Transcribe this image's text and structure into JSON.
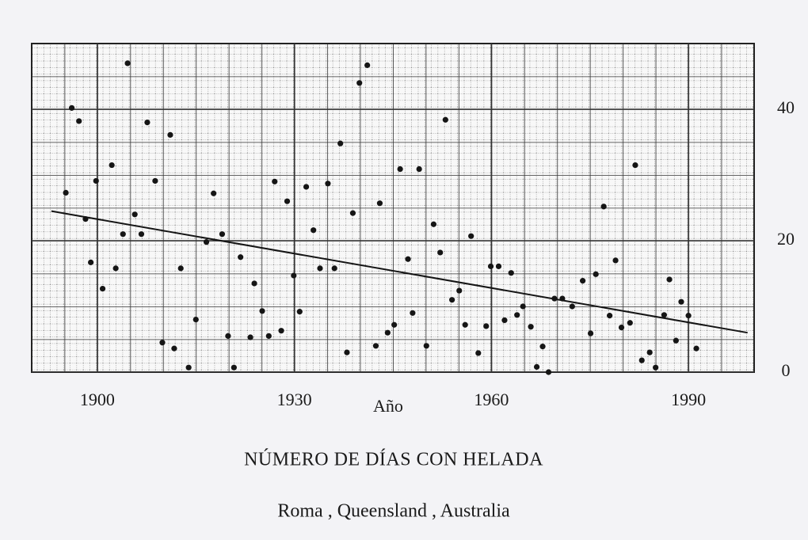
{
  "chart_data": {
    "type": "scatter",
    "title": "NÚMERO DE DÍAS CON HELADA",
    "subtitle": "Roma , Queensland , Australia",
    "x_label": "Año",
    "xlim": [
      1890,
      2000
    ],
    "ylim": [
      0,
      50
    ],
    "xticks": [
      1900,
      1930,
      1960,
      1990
    ],
    "yticks": [
      0,
      20,
      40
    ],
    "grid": true,
    "y_axis_side": "right",
    "color": "#151515",
    "x": [
      1895.2,
      1896.1,
      1897.2,
      1898.2,
      1899.0,
      1899.8,
      1900.8,
      1902.2,
      1902.8,
      1903.9,
      1904.6,
      1905.7,
      1906.7,
      1907.6,
      1908.8,
      1909.9,
      1911.7,
      1911.1,
      1912.7,
      1913.9,
      1915.0,
      1916.6,
      1917.7,
      1919.0,
      1919.9,
      1920.8,
      1921.8,
      1923.3,
      1923.9,
      1925.1,
      1926.1,
      1927.0,
      1928.0,
      1928.9,
      1929.9,
      1930.8,
      1931.8,
      1932.9,
      1933.9,
      1935.1,
      1936.1,
      1937.0,
      1938.0,
      1938.9,
      1939.9,
      1941.1,
      1942.4,
      1943.0,
      1944.2,
      1945.2,
      1946.1,
      1947.3,
      1948.0,
      1949.0,
      1950.1,
      1951.2,
      1952.2,
      1953.0,
      1954.0,
      1955.1,
      1956.0,
      1956.9,
      1958.0,
      1959.2,
      1959.9,
      1961.1,
      1962.0,
      1963.0,
      1963.9,
      1964.8,
      1966.0,
      1966.9,
      1967.8,
      1968.7,
      1969.6,
      1970.8,
      1972.3,
      1973.9,
      1975.1,
      1975.9,
      1977.1,
      1978.0,
      1978.9,
      1979.8,
      1981.1,
      1981.9,
      1982.9,
      1984.1,
      1985.0,
      1986.3,
      1987.1,
      1988.1,
      1988.9,
      1990.0,
      1991.2
    ],
    "values": [
      27.3,
      40.2,
      38.2,
      23.3,
      16.7,
      29.1,
      12.7,
      31.5,
      15.8,
      21,
      47,
      24,
      21,
      38,
      29.1,
      4.5,
      3.6,
      36.1,
      15.8,
      0.7,
      8,
      19.8,
      27.2,
      21,
      5.5,
      0.7,
      17.5,
      5.3,
      13.5,
      9.3,
      5.5,
      29,
      6.3,
      26,
      14.7,
      9.2,
      28.2,
      21.6,
      15.8,
      28.7,
      15.8,
      34.8,
      3,
      24.2,
      44,
      46.7,
      4,
      25.7,
      6,
      7.2,
      30.9,
      17.2,
      9,
      30.9,
      4,
      22.5,
      18.2,
      38.4,
      11,
      12.4,
      7.2,
      20.7,
      2.9,
      7,
      16.1,
      16.1,
      7.9,
      15.1,
      8.7,
      10,
      6.9,
      0.8,
      3.9,
      0,
      11.2,
      11.2,
      10,
      13.9,
      5.9,
      14.9,
      25.2,
      8.6,
      17,
      6.8,
      7.5,
      31.5,
      1.8,
      3,
      0.7,
      8.7,
      14.1,
      4.8,
      10.7,
      8.6,
      3.6
    ],
    "trend": {
      "x": [
        1893,
        1999
      ],
      "values": [
        24.5,
        6
      ]
    }
  }
}
